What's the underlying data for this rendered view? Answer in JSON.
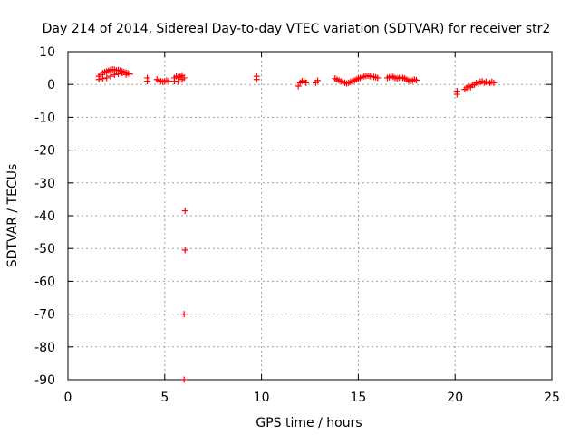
{
  "chart_data": {
    "type": "scatter",
    "title": "Day 214 of 2014, Sidereal Day-to-day VTEC variation (SDTVAR) for receiver str2",
    "xlabel": "GPS time / hours",
    "ylabel": "SDTVAR / TECUs",
    "xlim": [
      0,
      25
    ],
    "ylim": [
      -90,
      10
    ],
    "xticks": [
      0,
      5,
      10,
      15,
      20,
      25
    ],
    "yticks": [
      10,
      0,
      -10,
      -20,
      -30,
      -40,
      -50,
      -60,
      -70,
      -80,
      -90
    ],
    "grid": true,
    "series": [
      {
        "name": "SDTVAR",
        "color": "#ff0000",
        "marker": "plus",
        "x": [
          1.6,
          1.7,
          1.8,
          1.9,
          2.0,
          2.1,
          2.2,
          2.3,
          2.4,
          2.5,
          2.6,
          2.7,
          2.8,
          2.9,
          3.0,
          3.1,
          3.2,
          1.6,
          1.8,
          2.0,
          2.2,
          2.4,
          2.6,
          2.8,
          3.0,
          4.1,
          4.1,
          4.6,
          4.7,
          4.8,
          4.9,
          5.0,
          5.1,
          5.2,
          5.5,
          5.6,
          5.7,
          5.8,
          5.9,
          6.0,
          5.5,
          5.7,
          5.9,
          6.05,
          6.05,
          6.0,
          6.0,
          9.75,
          9.75,
          11.9,
          12.0,
          12.1,
          12.2,
          12.3,
          12.8,
          12.9,
          13.8,
          13.9,
          14.0,
          14.1,
          14.2,
          14.3,
          14.4,
          14.5,
          14.6,
          14.7,
          14.8,
          14.9,
          15.0,
          15.1,
          15.2,
          15.3,
          15.4,
          15.5,
          15.6,
          15.7,
          15.8,
          15.9,
          16.0,
          16.5,
          16.6,
          16.7,
          16.8,
          16.9,
          17.0,
          17.1,
          17.2,
          17.3,
          17.4,
          17.5,
          17.6,
          17.7,
          17.8,
          17.9,
          18.0,
          20.1,
          20.1,
          20.5,
          20.6,
          20.7,
          20.8,
          20.9,
          21.0,
          21.1,
          21.2,
          21.3,
          21.4,
          21.5,
          21.6,
          21.7,
          21.8,
          21.9,
          22.0
        ],
        "y": [
          2.5,
          3.0,
          3.5,
          3.8,
          4.0,
          4.2,
          4.5,
          4.6,
          4.5,
          4.3,
          4.4,
          4.2,
          4.0,
          3.8,
          3.6,
          3.4,
          3.2,
          1.5,
          1.8,
          2.0,
          2.5,
          3.0,
          3.2,
          3.5,
          3.0,
          2.0,
          1.0,
          1.5,
          1.2,
          1.0,
          0.8,
          1.0,
          1.2,
          1.0,
          2.0,
          2.5,
          2.2,
          2.5,
          2.8,
          2.0,
          1.0,
          0.8,
          1.5,
          -38.5,
          -50.5,
          -70.0,
          -90.0,
          2.5,
          1.5,
          -0.5,
          0.5,
          1.0,
          1.2,
          0.5,
          0.5,
          1.2,
          1.8,
          1.5,
          1.2,
          1.0,
          0.8,
          0.5,
          0.3,
          0.5,
          0.8,
          1.0,
          1.2,
          1.5,
          1.8,
          2.0,
          2.2,
          2.5,
          2.6,
          2.7,
          2.5,
          2.4,
          2.3,
          2.2,
          2.0,
          2.0,
          2.2,
          2.5,
          2.3,
          2.0,
          1.8,
          2.0,
          2.2,
          2.0,
          1.8,
          1.5,
          1.2,
          1.0,
          1.2,
          1.5,
          1.3,
          -2.0,
          -3.0,
          -1.5,
          -1.0,
          -0.5,
          -0.8,
          -0.2,
          0.0,
          0.5,
          0.3,
          0.8,
          1.0,
          0.5,
          0.8,
          0.3,
          0.5,
          0.8,
          0.5
        ]
      }
    ]
  }
}
